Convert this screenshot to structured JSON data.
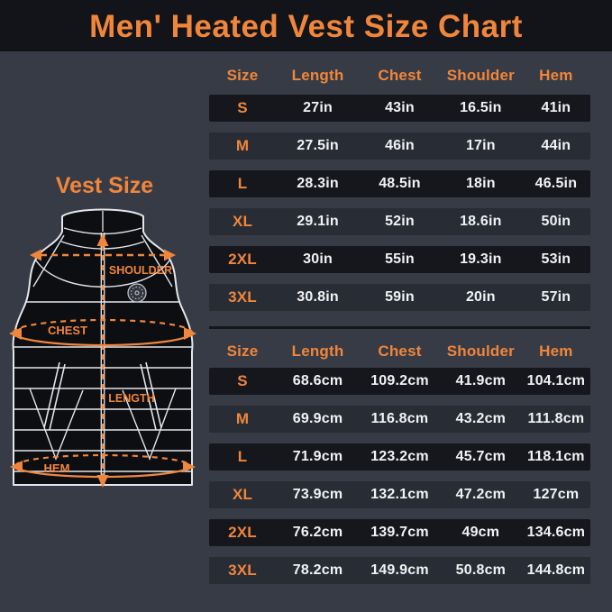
{
  "header": {
    "title": "Men' Heated Vest Size Chart"
  },
  "left_panel": {
    "heading": "Vest Size",
    "vest_labels": {
      "shoulder": "SHOULDER",
      "chest": "CHEST",
      "length": "LENGTH",
      "hem": "HEM"
    }
  },
  "chart_data": {
    "type": "table",
    "title": "Men' Heated Vest Size Chart",
    "tables": [
      {
        "unit": "in",
        "headers": [
          "Size",
          "Length",
          "Chest",
          "Shoulder",
          "Hem"
        ],
        "rows": [
          [
            "S",
            "27in",
            "43in",
            "16.5in",
            "41in"
          ],
          [
            "M",
            "27.5in",
            "46in",
            "17in",
            "44in"
          ],
          [
            "L",
            "28.3in",
            "48.5in",
            "18in",
            "46.5in"
          ],
          [
            "XL",
            "29.1in",
            "52in",
            "18.6in",
            "50in"
          ],
          [
            "2XL",
            "30in",
            "55in",
            "19.3in",
            "53in"
          ],
          [
            "3XL",
            "30.8in",
            "59in",
            "20in",
            "57in"
          ]
        ]
      },
      {
        "unit": "cm",
        "headers": [
          "Size",
          "Length",
          "Chest",
          "Shoulder",
          "Hem"
        ],
        "rows": [
          [
            "S",
            "68.6cm",
            "109.2cm",
            "41.9cm",
            "104.1cm"
          ],
          [
            "M",
            "69.9cm",
            "116.8cm",
            "43.2cm",
            "111.8cm"
          ],
          [
            "L",
            "71.9cm",
            "123.2cm",
            "45.7cm",
            "118.1cm"
          ],
          [
            "XL",
            "73.9cm",
            "132.1cm",
            "47.2cm",
            "127cm"
          ],
          [
            "2XL",
            "76.2cm",
            "139.7cm",
            "49cm",
            "134.6cm"
          ],
          [
            "3XL",
            "78.2cm",
            "149.9cm",
            "50.8cm",
            "144.8cm"
          ]
        ]
      }
    ]
  },
  "colors": {
    "accent_orange": "#F0863C",
    "page_background": "#373B45",
    "title_band": "#121419",
    "row_dark": "#15171D",
    "row_light": "#282C35",
    "value_text": "#F1F2F4",
    "vest_outline": "#E3E6EA",
    "vest_fill": "#0C0E12"
  }
}
